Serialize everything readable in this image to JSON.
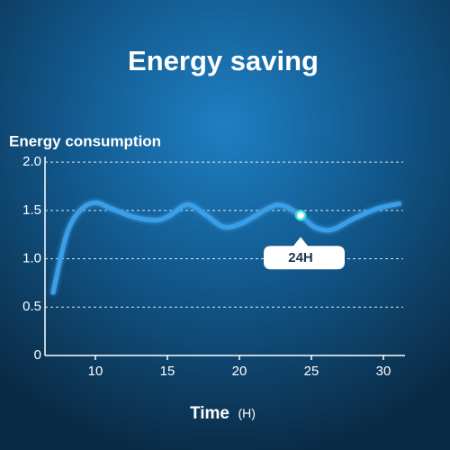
{
  "chart_data": {
    "type": "line",
    "title": "Energy saving",
    "y_label": "Energy consumption",
    "x_label": "Time",
    "x_unit": "(H)",
    "x": [
      7.06,
      8.0,
      8.94,
      10.0,
      11.1,
      12.7,
      14.25,
      15.2,
      16.4,
      17.7,
      18.9,
      20.2,
      22.1,
      23.0,
      24.25,
      25.2,
      26.4,
      28.0,
      29.6,
      31.1
    ],
    "series": [
      {
        "name": "Energy consumption",
        "color": "#3b9fe8",
        "values": [
          0.65,
          1.25,
          1.5,
          1.58,
          1.52,
          1.43,
          1.4,
          1.45,
          1.56,
          1.45,
          1.33,
          1.37,
          1.53,
          1.55,
          1.45,
          1.33,
          1.3,
          1.42,
          1.52,
          1.57
        ]
      }
    ],
    "highlight": {
      "x": 24.25,
      "y": 1.45,
      "label": "24H"
    },
    "xlim": [
      6.5,
      31.5
    ],
    "ylim": [
      0,
      2.15
    ],
    "xticks": [
      10,
      15,
      20,
      25,
      30
    ],
    "yticks": [
      0,
      0.5,
      {
        "value": 1,
        "label": "1.0"
      },
      1.5,
      {
        "value": 2,
        "label": "2.0"
      }
    ],
    "grid": true
  }
}
